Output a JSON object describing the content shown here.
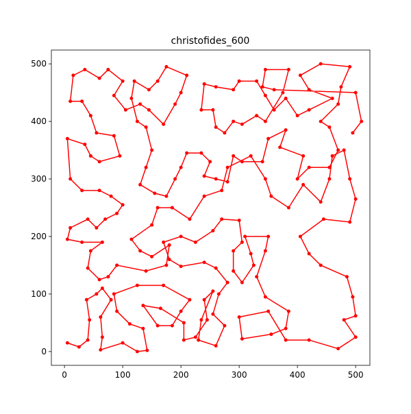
{
  "chart_data": {
    "type": "line",
    "title": "christofides_600",
    "color": "#ff0000",
    "marker": true,
    "x": [
      5,
      25,
      40,
      43,
      38,
      55,
      65,
      80,
      62,
      65,
      62,
      100,
      125,
      142,
      135,
      112,
      90,
      85,
      125,
      170,
      215,
      200,
      185,
      160,
      135,
      165,
      205,
      205,
      225,
      245,
      240,
      255,
      235,
      230,
      260,
      275,
      255,
      265,
      280,
      260,
      240,
      200,
      180,
      170,
      200,
      225,
      255,
      270,
      300,
      305,
      290,
      290,
      305,
      325,
      320,
      310,
      350,
      345,
      330,
      345,
      385,
      380,
      355,
      305,
      300,
      350,
      380,
      420,
      470,
      500,
      480,
      500,
      495,
      485,
      440,
      420,
      405,
      445,
      490,
      500,
      490,
      480,
      460,
      455,
      440,
      410,
      385,
      355,
      345,
      320,
      280,
      270,
      240,
      215,
      185,
      160,
      150,
      115,
      130,
      150,
      180,
      175,
      140,
      90,
      75,
      60,
      40,
      45,
      65,
      30,
      5,
      10,
      40,
      55,
      70,
      90,
      100,
      80,
      60,
      30,
      10,
      5,
      35,
      45,
      60,
      95,
      85,
      55,
      45,
      30,
      10,
      15,
      35,
      60,
      75,
      100,
      85,
      105,
      130,
      145,
      170,
      190,
      200,
      210,
      175,
      160,
      145,
      120,
      115,
      125,
      140,
      150,
      140,
      130,
      155,
      175,
      190,
      200,
      210,
      235,
      250,
      240,
      260,
      280,
      290,
      305,
      340,
      350,
      380,
      370,
      410,
      400,
      420,
      455,
      470,
      455,
      440,
      470,
      475,
      490,
      440,
      405,
      420,
      460,
      420,
      400,
      380,
      360,
      345,
      330,
      300,
      290,
      260,
      240,
      235,
      255,
      260,
      275,
      290,
      305,
      330,
      345,
      375,
      385,
      345,
      340,
      360,
      500,
      510,
      495
    ],
    "values": [
      15,
      8,
      20,
      55,
      90,
      100,
      110,
      90,
      60,
      25,
      3,
      15,
      0,
      2,
      40,
      48,
      70,
      100,
      115,
      115,
      90,
      70,
      45,
      45,
      80,
      75,
      50,
      20,
      25,
      55,
      90,
      105,
      55,
      20,
      10,
      45,
      65,
      100,
      120,
      145,
      155,
      148,
      160,
      190,
      200,
      190,
      210,
      230,
      228,
      190,
      175,
      140,
      120,
      150,
      170,
      200,
      200,
      175,
      130,
      95,
      70,
      40,
      30,
      22,
      60,
      70,
      20,
      20,
      5,
      25,
      55,
      62,
      95,
      130,
      150,
      170,
      200,
      230,
      225,
      265,
      300,
      350,
      340,
      300,
      260,
      290,
      250,
      270,
      300,
      340,
      320,
      280,
      270,
      230,
      250,
      250,
      220,
      195,
      175,
      165,
      185,
      150,
      140,
      150,
      130,
      125,
      145,
      175,
      190,
      190,
      195,
      215,
      230,
      215,
      230,
      240,
      255,
      270,
      280,
      280,
      300,
      370,
      360,
      340,
      330,
      340,
      375,
      380,
      410,
      435,
      435,
      480,
      490,
      475,
      490,
      470,
      445,
      420,
      430,
      420,
      395,
      430,
      450,
      480,
      495,
      470,
      455,
      470,
      440,
      400,
      390,
      350,
      320,
      290,
      275,
      270,
      300,
      320,
      345,
      345,
      330,
      305,
      300,
      295,
      340,
      330,
      330,
      370,
      385,
      355,
      340,
      300,
      320,
      320,
      350,
      390,
      400,
      430,
      460,
      495,
      500,
      480,
      455,
      440,
      420,
      410,
      440,
      420,
      445,
      470,
      470,
      455,
      460,
      465,
      420,
      420,
      390,
      380,
      400,
      395,
      410,
      400,
      450,
      490,
      490,
      460,
      455,
      450,
      400,
      380
    ],
    "xlim": [
      -22.5,
      524.5
    ],
    "ylim": [
      -24,
      524
    ],
    "xticks": [
      0,
      100,
      200,
      300,
      400,
      500
    ],
    "yticks": [
      0,
      100,
      200,
      300,
      400,
      500
    ]
  }
}
